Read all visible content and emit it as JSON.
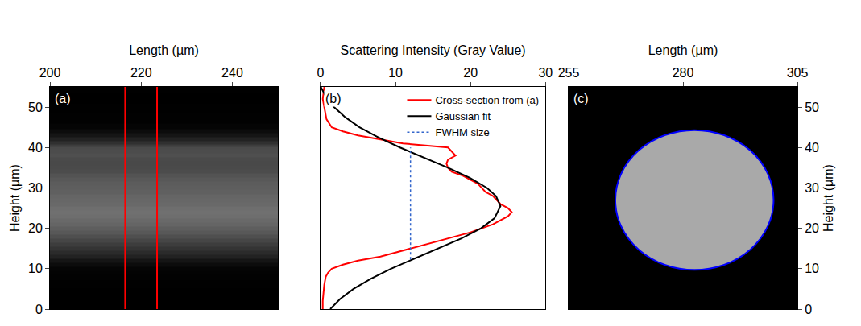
{
  "chart_data": [
    {
      "type": "heatmap",
      "panel_label": "(a)",
      "xlabel": "Length (µm)",
      "ylabel": "Height (µm)",
      "xlim": [
        200,
        250
      ],
      "xticks": [
        200,
        220,
        240
      ],
      "ylim": [
        0,
        55
      ],
      "yticks": [
        0,
        10,
        20,
        30,
        40,
        50
      ],
      "heights": [
        0,
        2,
        4,
        6,
        8,
        9,
        10,
        11,
        12,
        13,
        14,
        15,
        16,
        17,
        18,
        19,
        20,
        21,
        22,
        23,
        24,
        25,
        26,
        27,
        28,
        29,
        30,
        31,
        32,
        33,
        34,
        35,
        36,
        37,
        38,
        39,
        40,
        40.5,
        41,
        42,
        43,
        44,
        45,
        47,
        50,
        52,
        55
      ],
      "intensity": [
        0.3,
        0.3,
        0.4,
        0.5,
        0.7,
        1,
        1.5,
        3,
        5,
        8,
        10,
        12,
        14,
        16,
        18,
        20,
        21.5,
        23,
        24,
        25,
        25.5,
        25,
        24,
        23.5,
        23,
        22,
        21.5,
        21,
        20,
        19,
        17.5,
        17,
        16.8,
        17,
        18,
        17.5,
        17,
        14,
        11,
        8,
        5,
        3,
        1.5,
        0.8,
        0.5,
        0.3,
        0.5
      ],
      "markers": {
        "x": [
          216.5,
          223.5
        ],
        "color": "#ff0000"
      }
    },
    {
      "type": "line",
      "panel_label": "(b)",
      "xlabel": "Scattering Intensity (Gray Value)",
      "xlim": [
        0,
        30
      ],
      "xticks": [
        0,
        10,
        20,
        30
      ],
      "ylim": [
        0,
        55
      ],
      "tick_labels": "x",
      "legend": "upper right",
      "series": [
        {
          "name": "Cross-section from (a)",
          "color": "#ff0000",
          "line_style": "solid",
          "x": [
            0.3,
            0.3,
            0.4,
            0.5,
            0.7,
            1,
            1.5,
            3,
            5,
            8,
            10,
            12,
            14,
            16,
            18,
            20,
            21.5,
            23,
            24,
            25,
            25.5,
            25,
            24,
            23.5,
            23,
            22,
            21.5,
            21,
            20,
            19,
            17.5,
            17,
            16.8,
            17,
            18,
            17.5,
            17,
            14,
            11,
            8,
            5,
            3,
            1.5,
            0.8,
            0.5,
            0.3,
            0.5
          ],
          "y": [
            0,
            2,
            4,
            6,
            8,
            9,
            10,
            11,
            12,
            13,
            14,
            15,
            16,
            17,
            18,
            19,
            20,
            21,
            22,
            23,
            24,
            25,
            26,
            27,
            28,
            29,
            30,
            31,
            32,
            33,
            34,
            35,
            36,
            37,
            38,
            39,
            40,
            40.5,
            41,
            42,
            43,
            44,
            45,
            47,
            50,
            52,
            55
          ]
        },
        {
          "name": "Gaussian fit",
          "color": "#000000",
          "line_style": "solid",
          "x": [
            1.3,
            2.6,
            4.4,
            6.7,
            9.4,
            12.5,
            15.7,
            18.8,
            21.4,
            23.2,
            24,
            23.4,
            22.2,
            19.9,
            17,
            13.8,
            10.6,
            7.7,
            5.2,
            3.3,
            1.8,
            0.75,
            0.04
          ],
          "y": [
            0,
            2.5,
            5,
            7.5,
            10,
            12.5,
            15,
            17.5,
            20,
            22.5,
            25.5,
            28,
            30,
            32.5,
            35,
            37.5,
            40,
            42.5,
            45,
            47.5,
            50,
            52.5,
            55
          ]
        },
        {
          "name": "FWHM size",
          "color": "#3366cc",
          "line_style": "dotted",
          "x": [
            12,
            12
          ],
          "y": [
            12.3,
            40
          ]
        }
      ]
    },
    {
      "type": "image",
      "panel_label": "(c)",
      "xlabel": "Length (µm)",
      "ylabel": "Height (µm)",
      "xlim": [
        255,
        305
      ],
      "xticks": [
        255,
        280,
        305
      ],
      "ylim": [
        0,
        55
      ],
      "yticks": [
        0,
        10,
        20,
        30,
        40,
        50
      ],
      "particle": {
        "center": [
          282.5,
          27
        ],
        "radius": 17.3,
        "color": "#0000ff"
      }
    }
  ]
}
